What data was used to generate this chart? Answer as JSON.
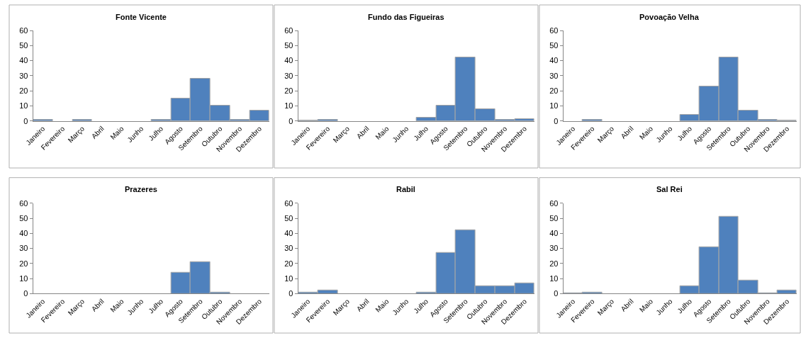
{
  "chart_data": [
    {
      "type": "bar",
      "title": "Fonte Vicente",
      "categories": [
        "Janeiro",
        "Fevereiro",
        "Março",
        "Abril",
        "Maio",
        "Junho",
        "Julho",
        "Agosto",
        "Setembro",
        "Outubro",
        "Novembro",
        "Dezembro"
      ],
      "values": [
        1,
        0,
        1,
        0,
        0,
        0,
        1,
        15,
        28,
        10,
        1,
        7
      ],
      "color": "#4f81bd",
      "ylim": [
        0,
        60
      ],
      "yticks": [
        0,
        10,
        20,
        30,
        40,
        50,
        60
      ]
    },
    {
      "type": "bar",
      "title": "Fundo das Figueiras",
      "categories": [
        "Janeiro",
        "Fevereiro",
        "Março",
        "Abril",
        "Maio",
        "Junho",
        "Julho",
        "Agosto",
        "Setembro",
        "Outubro",
        "Novembro",
        "Dezembro"
      ],
      "values": [
        0.5,
        1,
        0,
        0,
        0,
        0,
        2,
        10,
        42,
        8,
        1,
        1.5
      ],
      "color": "#4f81bd",
      "ylim": [
        0,
        60
      ],
      "yticks": [
        0,
        10,
        20,
        30,
        40,
        50,
        60
      ]
    },
    {
      "type": "bar",
      "title": "Povoação Velha",
      "categories": [
        "Janeiro",
        "Fevereiro",
        "Março",
        "Abril",
        "Maio",
        "Junho",
        "Julho",
        "Agosto",
        "Setembro",
        "Outubro",
        "Novembro",
        "Dezembro"
      ],
      "values": [
        0,
        1,
        0,
        0,
        0,
        0,
        4,
        23,
        42,
        7,
        1,
        0.5
      ],
      "color": "#4f81bd",
      "ylim": [
        0,
        60
      ],
      "yticks": [
        0,
        10,
        20,
        30,
        40,
        50,
        60
      ]
    },
    {
      "type": "bar",
      "title": "Prazeres",
      "categories": [
        "Janeiro",
        "Fevereiro",
        "Março",
        "Abril",
        "Maio",
        "Junho",
        "Julho",
        "Agosto",
        "Setembro",
        "Outubro",
        "Novembro",
        "Dezembro"
      ],
      "values": [
        0,
        0,
        0,
        0,
        0,
        0,
        0,
        14,
        21,
        1,
        0,
        0
      ],
      "color": "#4f81bd",
      "ylim": [
        0,
        60
      ],
      "yticks": [
        0,
        10,
        20,
        30,
        40,
        50,
        60
      ]
    },
    {
      "type": "bar",
      "title": "Rabil",
      "categories": [
        "Janeiro",
        "Fevereiro",
        "Março",
        "Abril",
        "Maio",
        "Junho",
        "Julho",
        "Agosto",
        "Setembro",
        "Outubro",
        "Novembro",
        "Dezembro"
      ],
      "values": [
        1,
        2,
        0,
        0,
        0,
        0,
        1,
        27,
        42,
        5,
        5,
        7
      ],
      "color": "#4f81bd",
      "ylim": [
        0,
        60
      ],
      "yticks": [
        0,
        10,
        20,
        30,
        40,
        50,
        60
      ]
    },
    {
      "type": "bar",
      "title": "Sal Rei",
      "categories": [
        "Janeiro",
        "Fevereiro",
        "Março",
        "Abril",
        "Maio",
        "Junho",
        "Julho",
        "Agosto",
        "Setembro",
        "Outubro",
        "Novembro",
        "Dezembro"
      ],
      "values": [
        0.5,
        1,
        0,
        0,
        0,
        0,
        5,
        31,
        51,
        9,
        0.5,
        2
      ],
      "color": "#4f81bd",
      "ylim": [
        0,
        60
      ],
      "yticks": [
        0,
        10,
        20,
        30,
        40,
        50,
        60
      ]
    }
  ]
}
